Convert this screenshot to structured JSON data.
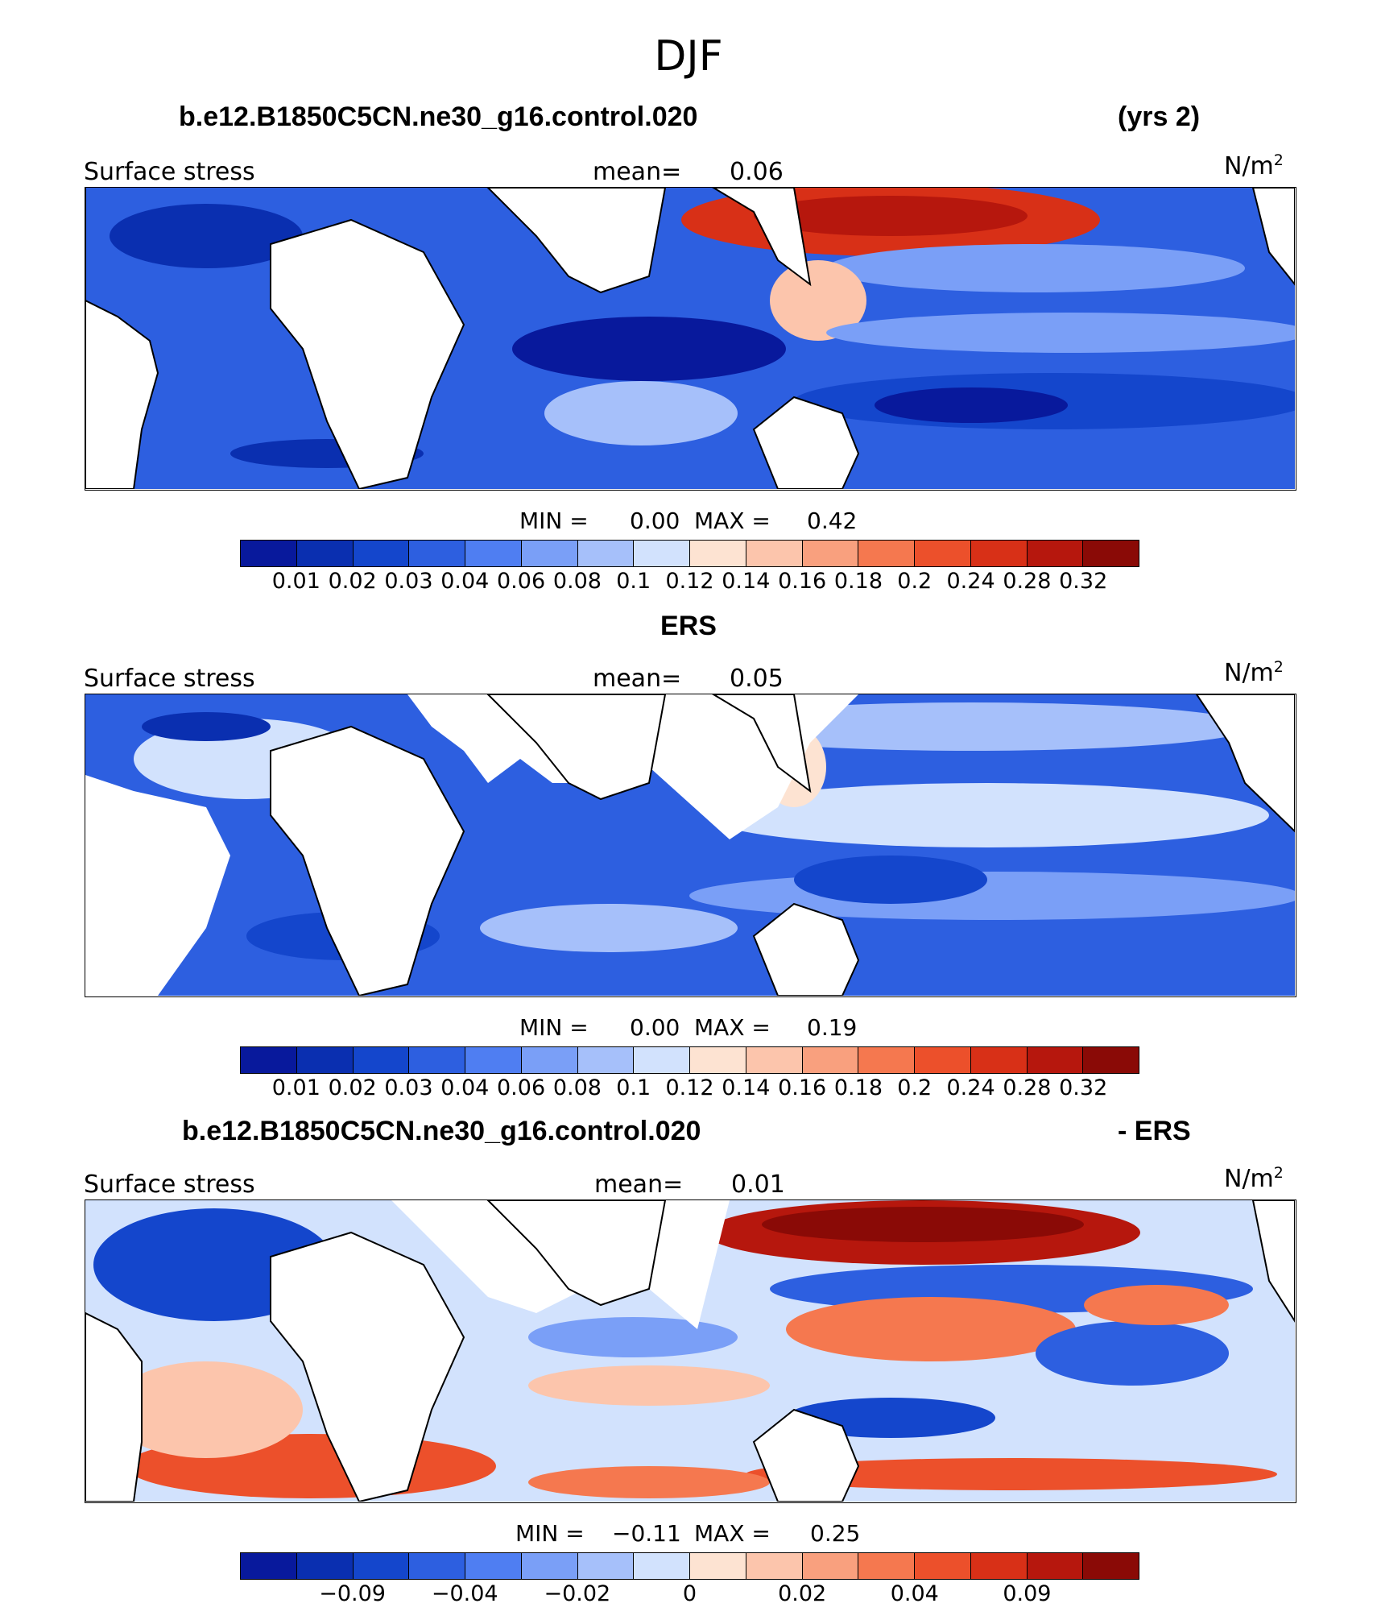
{
  "figure": {
    "title": "DJF",
    "variable": "Surface stress",
    "units": "N/m",
    "units_exp": "2",
    "mean_label": "mean=",
    "min_label": "MIN =",
    "max_label": "MAX ="
  },
  "panels": [
    {
      "id": "model",
      "case_title": "b.e12.B1850C5CN.ne30_g16.control.020",
      "right_title": "(yrs 2)",
      "mean": "0.06",
      "min": "0.00",
      "max": "0.42",
      "colorbar_labels": [
        "0.01",
        "0.02",
        "0.03",
        "0.04",
        "0.06",
        "0.08",
        "0.1",
        "0.12",
        "0.14",
        "0.16",
        "0.18",
        "0.2",
        "0.24",
        "0.28",
        "0.32"
      ]
    },
    {
      "id": "obs",
      "case_title": "ERS",
      "right_title": "",
      "mean": "0.05",
      "min": "0.00",
      "max": "0.19",
      "colorbar_labels": [
        "0.01",
        "0.02",
        "0.03",
        "0.04",
        "0.06",
        "0.08",
        "0.1",
        "0.12",
        "0.14",
        "0.16",
        "0.18",
        "0.2",
        "0.24",
        "0.28",
        "0.32"
      ]
    },
    {
      "id": "diff",
      "case_title": "b.e12.B1850C5CN.ne30_g16.control.020",
      "right_title": "- ERS",
      "mean": "0.01",
      "min": "−0.11",
      "max": "0.25",
      "colorbar_labels": [
        "−0.09",
        "−0.04",
        "−0.02",
        "0",
        "0.02",
        "0.04",
        "0.09"
      ]
    }
  ],
  "colors": {
    "abs_scale": [
      "#08199c",
      "#0a2fb0",
      "#1446cc",
      "#2d5fe0",
      "#4f7ef2",
      "#7a9ff7",
      "#a6c0fa",
      "#d2e2fd",
      "#fde3d2",
      "#fcc5ac",
      "#f9a07e",
      "#f5784f",
      "#ec502b",
      "#d83017",
      "#b6170d",
      "#8a0a06"
    ],
    "diff_scale": [
      "#08199c",
      "#0a2fb0",
      "#1446cc",
      "#2d5fe0",
      "#4f7ef2",
      "#7a9ff7",
      "#a6c0fa",
      "#d2e2fd",
      "#fde3d2",
      "#fcc5ac",
      "#f9a07e",
      "#f5784f",
      "#ec502b",
      "#d83017",
      "#b6170d",
      "#8a0a06"
    ]
  }
}
